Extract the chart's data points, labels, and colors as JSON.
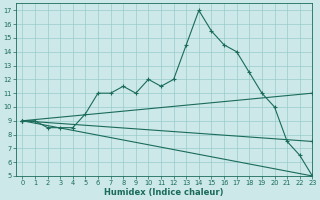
{
  "xlabel": "Humidex (Indice chaleur)",
  "background_color": "#cce8e8",
  "grid_color": "#99cccc",
  "line_color": "#1a6b5a",
  "xlim": [
    -0.5,
    23
  ],
  "ylim": [
    5,
    17.5
  ],
  "xticks": [
    0,
    1,
    2,
    3,
    4,
    5,
    6,
    7,
    8,
    9,
    10,
    11,
    12,
    13,
    14,
    15,
    16,
    17,
    18,
    19,
    20,
    21,
    22,
    23
  ],
  "yticks": [
    5,
    6,
    7,
    8,
    9,
    10,
    11,
    12,
    13,
    14,
    15,
    16,
    17
  ],
  "line1_x": [
    0,
    1,
    2,
    3,
    4,
    5,
    6,
    7,
    8,
    9,
    10,
    11,
    12,
    13,
    14,
    15,
    16,
    17,
    18,
    19,
    20,
    21,
    22,
    23
  ],
  "line1_y": [
    9,
    9,
    8.5,
    8.5,
    8.5,
    9.5,
    11,
    11,
    11.5,
    11,
    12,
    11.5,
    12,
    14.5,
    17,
    15.5,
    14.5,
    14,
    12.5,
    11,
    10,
    7.5,
    6.5,
    5
  ],
  "line2_x": [
    0,
    23
  ],
  "line2_y": [
    9,
    11
  ],
  "line3_x": [
    0,
    23
  ],
  "line3_y": [
    9,
    7.5
  ],
  "line4_x": [
    0,
    23
  ],
  "line4_y": [
    9,
    5
  ]
}
